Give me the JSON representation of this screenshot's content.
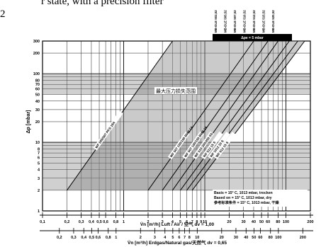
{
  "header": {
    "line1": "r state, with a precision filter",
    "line2": "2"
  },
  "chart_data": {
    "type": "line",
    "title": "",
    "xlabel": "V̇n [m³/h] Luft / Air / 空气  dv = 1,00",
    "xlabel2": "V̇n [m³/h] Erdgas/Natural gas/天然气  dv = 0,65",
    "ylabel": "Δp [mbar]",
    "x_scale": "log",
    "y_scale": "log",
    "xlim": [
      0.1,
      200
    ],
    "ylim": [
      1,
      300
    ],
    "grid": true,
    "x_ticks": [
      "0,1",
      "0,2",
      "0,3",
      "0,4",
      "0,5",
      "0,6",
      "0,8",
      "1",
      "2",
      "3",
      "4",
      "5",
      "6",
      "7",
      "8",
      "9",
      "10",
      "20",
      "30",
      "40",
      "50",
      "60",
      "80",
      "100",
      "200"
    ],
    "x2_ticks": [
      "0,2",
      "0,3",
      "0,4",
      "0,5",
      "0,6",
      "0,8",
      "1",
      "2",
      "3",
      "4",
      "5",
      "6",
      "7",
      "8",
      "10",
      "20",
      "30",
      "40",
      "50",
      "60",
      "80",
      "100",
      "200"
    ],
    "y_ticks": [
      "1",
      "2",
      "3",
      "4",
      "5",
      "6",
      "7",
      "8",
      "10",
      "20",
      "30",
      "40",
      "50",
      "60",
      "70",
      "80",
      "100",
      "200",
      "300"
    ],
    "band_label": "最大压力损失范围",
    "pe_label": "Δpe = 5 mbar",
    "series": [
      {
        "name": "WF 505/507 PKS 18A",
        "x": [
          0.2,
          4
        ],
        "y": [
          2,
          300
        ]
      },
      {
        "name": "WF 507 100/150 BMB 1A",
        "x": [
          2,
          40
        ],
        "y": [
          2,
          300
        ]
      },
      {
        "name": "WF 507 100/150 BMB 1A",
        "x": [
          3,
          60
        ],
        "y": [
          2,
          300
        ]
      },
      {
        "name": "WF 510 200/250 SS",
        "x": [
          4,
          80
        ],
        "y": [
          2,
          300
        ]
      },
      {
        "name": "WF 512 15 S",
        "x": [
          5,
          110
        ],
        "y": [
          2,
          300
        ]
      },
      {
        "name": "WF 1012 20 S",
        "x": [
          6,
          140
        ],
        "y": [
          2,
          300
        ]
      },
      {
        "name": "WF 612 15 S",
        "x": [
          7,
          170
        ],
        "y": [
          2,
          300
        ]
      }
    ],
    "top_series_labels": [
      "MB-DLE 503,52",
      "MB-DLE 505,52",
      "MB-DLE 507,52",
      "MB-DLE 510,52",
      "MB-DLE 512,52",
      "MB-DLE 515,52",
      "MB-DLE 520,52"
    ],
    "basis": {
      "line1": "Basis        = 15° C, 1013 mbar, trocken",
      "line2": "Based on  = 15° C, 1013 mbar, dry",
      "line3": "参考标准条件 = 15° C, 1013 mbar, 干燥"
    }
  }
}
